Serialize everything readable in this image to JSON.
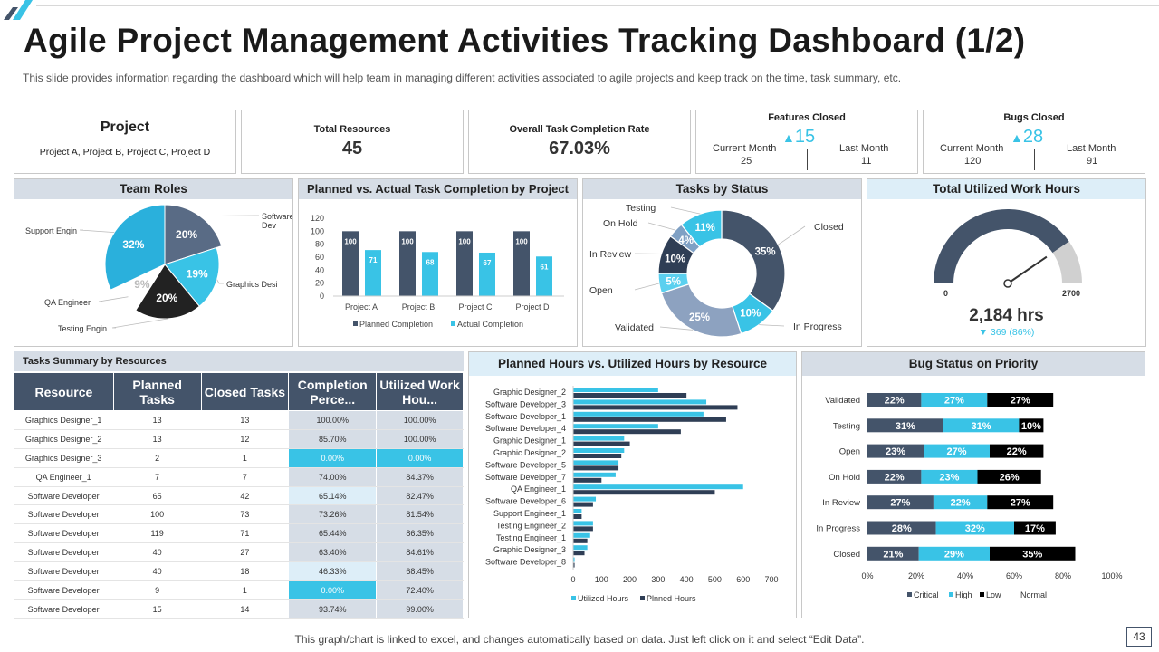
{
  "title": "Agile Project Management Activities Tracking Dashboard (1/2)",
  "subtitle": "This slide provides  information  regarding  the  dashboard  which  will  help  team  in  managing  different   activities  associated  to  agile  projects  and  keep  track  on  the  time,  task  summary,  etc.",
  "kpis": {
    "project": {
      "label": "Project",
      "value": "Project A, Project B, Project C, Project D"
    },
    "resources": {
      "label": "Total Resources",
      "value": "45"
    },
    "completion": {
      "label": "Overall Task Completion Rate",
      "value": "67.03%"
    },
    "features": {
      "label": "Features Closed",
      "delta": "15",
      "current_label": "Current Month",
      "current": "25",
      "last_label": "Last Month",
      "last": "11"
    },
    "bugs": {
      "label": "Bugs Closed",
      "delta": "28",
      "current_label": "Current Month",
      "current": "120",
      "last_label": "Last Month",
      "last": "91"
    }
  },
  "panels": {
    "team_roles": "Team Roles",
    "planned_actual": "Planned vs. Actual Task Completion by Project",
    "tasks_status": "Tasks by Status",
    "work_hours": "Total Utilized Work Hours",
    "tasks_summary": "Tasks Summary by Resources",
    "hours_resource": "Planned Hours vs. Utilized Hours  by Resource",
    "bug_status": "Bug Status on Priority"
  },
  "gauge": {
    "min": "0",
    "max": "2700",
    "value": 2184,
    "value_label": "2,184 hrs",
    "delta": "369 (86%)"
  },
  "table": {
    "headers": [
      "Resource",
      "Planned Tasks",
      "Closed Tasks",
      "Completion Perce...",
      "Utilized Work Hou..."
    ],
    "rows": [
      [
        "Graphics Designer_1",
        "13",
        "13",
        "100.00%",
        "100.00%"
      ],
      [
        "Graphics Designer_2",
        "13",
        "12",
        "85.70%",
        "100.00%"
      ],
      [
        "Graphics Designer_3",
        "2",
        "1",
        "0.00%",
        "0.00%"
      ],
      [
        "QA Engineer_1",
        "7",
        "7",
        "74.00%",
        "84.37%"
      ],
      [
        "Software Developer",
        "65",
        "42",
        "65.14%",
        "82.47%"
      ],
      [
        "Software Developer",
        "100",
        "73",
        "73.26%",
        "81.54%"
      ],
      [
        "Software Developer",
        "119",
        "71",
        "65.44%",
        "86.35%"
      ],
      [
        "Software Developer",
        "40",
        "27",
        "63.40%",
        "84.61%"
      ],
      [
        "Software Developer",
        "40",
        "18",
        "46.33%",
        "68.45%"
      ],
      [
        "Software Developer",
        "9",
        "1",
        "0.00%",
        "72.40%"
      ],
      [
        "Software Developer",
        "15",
        "14",
        "93.74%",
        "99.00%"
      ]
    ]
  },
  "chart_data": [
    {
      "type": "pie",
      "title": "Team Roles",
      "categories": [
        "Software Dev",
        "Graphics Desi",
        "Testing Engin",
        "QA Engineer",
        "Support Engin"
      ],
      "values": [
        20,
        19,
        20,
        9,
        32
      ],
      "labels": [
        "20%",
        "19%",
        "20%",
        "9%",
        "32%"
      ],
      "colors": [
        "#596b85",
        "#39c3e6",
        "#222222",
        "#ffffff",
        "#2ab0dc"
      ]
    },
    {
      "type": "bar",
      "title": "Planned vs. Actual Task Completion by Project",
      "categories": [
        "Project A",
        "Project B",
        "Project C",
        "Project D"
      ],
      "series": [
        {
          "name": "Planned Completion",
          "values": [
            100,
            100,
            100,
            100
          ],
          "color": "#44546a"
        },
        {
          "name": "Actual Completion",
          "values": [
            71,
            68,
            67,
            61
          ],
          "color": "#39c3e6"
        }
      ],
      "ylim": [
        0,
        120
      ],
      "yticks": [
        "0",
        "20",
        "40",
        "60",
        "80",
        "100",
        "120"
      ]
    },
    {
      "type": "pie",
      "title": "Tasks by Status",
      "categories": [
        "Closed",
        "In Progress",
        "Validated",
        "Open",
        "In Review",
        "On Hold",
        "Testing"
      ],
      "values": [
        35,
        10,
        25,
        5,
        10,
        4,
        11
      ],
      "labels": [
        "35%",
        "10%",
        "25%",
        "5%",
        "10%",
        "4%",
        "11%"
      ],
      "colors": [
        "#44546a",
        "#39c3e6",
        "#8da2c0",
        "#5bd0ef",
        "#2f3e55",
        "#7fa0c4",
        "#39c3e6"
      ]
    },
    {
      "type": "bar",
      "orientation": "horizontal",
      "title": "Planned Hours vs. Utilized Hours  by Resource",
      "categories": [
        "Graphic Designer_2",
        "Software Developer_3",
        "Software Developer_1",
        "Software Developer_4",
        "Graphic Designer_1",
        "Graphic Designer_2",
        "Software Developer_5",
        "Software Developer_7",
        "QA Engineer_1",
        "Software Developer_6",
        "Support Engineer_1",
        "Testing Engineer_2",
        "Testing Engineer_1",
        "Graphic Designer_3",
        "Software Developer_8"
      ],
      "series": [
        {
          "name": "Utilized Hours",
          "values": [
            300,
            470,
            460,
            300,
            180,
            180,
            160,
            150,
            600,
            80,
            30,
            70,
            60,
            50,
            5
          ],
          "color": "#39c3e6"
        },
        {
          "name": "Plnned Hours",
          "values": [
            400,
            580,
            540,
            380,
            200,
            170,
            160,
            100,
            500,
            70,
            30,
            70,
            50,
            40,
            5
          ],
          "color": "#2f3e55"
        }
      ],
      "xlim": [
        0,
        700
      ],
      "xticks": [
        "0",
        "100",
        "200",
        "300",
        "400",
        "500",
        "600",
        "700"
      ]
    },
    {
      "type": "bar",
      "orientation": "horizontal",
      "stacked": true,
      "title": "Bug Status on Priority",
      "categories": [
        "Validated",
        "Testing",
        "Open",
        "On Hold",
        "In Review",
        "In Progress",
        "Closed"
      ],
      "series": [
        {
          "name": "Critical",
          "values": [
            22,
            31,
            23,
            22,
            27,
            28,
            21
          ],
          "color": "#44546a"
        },
        {
          "name": "High",
          "values": [
            27,
            31,
            27,
            23,
            22,
            32,
            29
          ],
          "color": "#39c3e6"
        },
        {
          "name": "Low",
          "values": [
            27,
            10,
            22,
            26,
            27,
            17,
            35
          ],
          "color": "#000000"
        },
        {
          "name": "Normal",
          "values": [
            0,
            0,
            0,
            0,
            0,
            0,
            0
          ],
          "color": "#ffffff"
        }
      ],
      "xticks": [
        "0%",
        "20%",
        "40%",
        "60%",
        "80%",
        "100%"
      ]
    }
  ],
  "footer": "This graph/chart is linked to excel,  and changes automatically based on data. Just left click on it and select “Edit Data”.",
  "page_number": "43"
}
